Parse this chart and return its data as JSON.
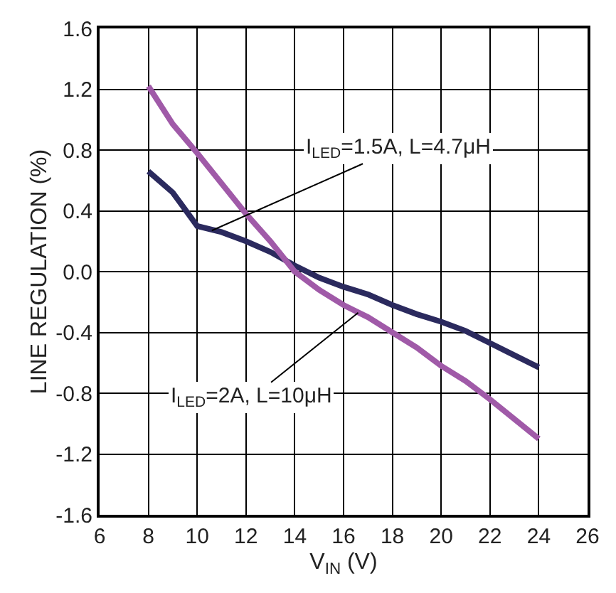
{
  "chart_data": {
    "type": "line",
    "xlabel": "V$_{IN}$ (V)",
    "ylabel": "LINE REGULATION (%)",
    "xlim": [
      6,
      26
    ],
    "xticks": [
      6,
      8,
      10,
      12,
      14,
      16,
      18,
      20,
      22,
      24,
      26
    ],
    "ylim": [
      -1.6,
      1.6
    ],
    "yticks": [
      {
        "value": -1.6,
        "label": "-1.6"
      },
      {
        "value": -1.2,
        "label": "-1.2"
      },
      {
        "value": -0.8,
        "label": "-0.8"
      },
      {
        "value": -0.4,
        "label": "-0.4"
      },
      {
        "value": 0,
        "label": "0.0"
      },
      {
        "value": 0.4,
        "label": "0.4"
      },
      {
        "value": 0.8,
        "label": "0.8"
      },
      {
        "value": 1.2,
        "label": "1.2"
      },
      {
        "value": 1.6,
        "label": "1.6"
      }
    ],
    "grid": true,
    "line_style": "solid",
    "marker": "none",
    "series": [
      {
        "color": "#2b2a5e",
        "x": [
          8,
          9,
          10,
          11,
          12,
          13,
          14,
          15,
          16,
          17,
          18,
          19,
          20,
          21,
          22,
          23,
          24
        ],
        "values": [
          0.66,
          0.52,
          0.3,
          0.26,
          0.2,
          0.13,
          0.04,
          -0.04,
          -0.1,
          -0.15,
          -0.22,
          -0.28,
          -0.33,
          -0.39,
          -0.47,
          -0.55,
          -0.63
        ]
      },
      {
        "color": "#a05aa8",
        "x": [
          8,
          9,
          10,
          11,
          12,
          13,
          14,
          15,
          16,
          17,
          18,
          19,
          20,
          21,
          22,
          23,
          24
        ],
        "values": [
          1.22,
          0.97,
          0.78,
          0.58,
          0.38,
          0.2,
          0.0,
          -0.12,
          -0.22,
          -0.3,
          -0.4,
          -0.5,
          -0.62,
          -0.72,
          -0.84,
          -0.97,
          -1.1
        ]
      }
    ],
    "annotations": [
      {
        "text": "I$_{LED}$=1.5A, L=4.7μH",
        "x": 10.6,
        "y": 0.27
      },
      {
        "text": "I$_{LED}$=2A, L=10μH",
        "x": 16.6,
        "y": -0.27
      }
    ]
  }
}
